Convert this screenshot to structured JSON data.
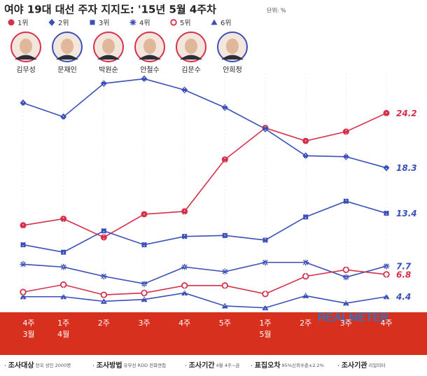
{
  "chart_data": {
    "type": "line",
    "title": "여야 19대 대선 주자 지지도: '15년 5월 4주차",
    "unit": "단위: %",
    "candidates": [
      "김무성",
      "문재인",
      "박원순",
      "안철수",
      "김문수",
      "안희정"
    ],
    "categories": [
      [
        "4주",
        "3월"
      ],
      [
        "1주",
        "4월"
      ],
      [
        "2주"
      ],
      [
        "3주"
      ],
      [
        "4주"
      ],
      [
        "5주"
      ],
      [
        "1주",
        "5월"
      ],
      [
        "2주"
      ],
      [
        "3주"
      ],
      [
        "4주"
      ]
    ],
    "ylim": [
      0,
      29
    ],
    "series": [
      {
        "name": "1위",
        "color": "#d6304a",
        "marker": "circle",
        "values": [
          12.1,
          12.8,
          10.8,
          13.3,
          13.6,
          19.2,
          22.6,
          21.2,
          22.2,
          24.2
        ]
      },
      {
        "name": "2위",
        "color": "#3a4fb8",
        "marker": "diamond",
        "values": [
          25.3,
          23.8,
          27.4,
          27.9,
          26.7,
          24.8,
          22.5,
          19.6,
          19.5,
          18.3
        ]
      },
      {
        "name": "3위",
        "color": "#3a4fb8",
        "marker": "square",
        "values": [
          10.0,
          9.2,
          11.5,
          10.0,
          10.9,
          11.0,
          10.5,
          13.0,
          14.7,
          13.4
        ]
      },
      {
        "name": "4위",
        "color": "#3a4fb8",
        "marker": "star",
        "values": [
          7.9,
          7.6,
          6.6,
          5.8,
          7.6,
          7.1,
          8.1,
          8.1,
          6.5,
          7.7
        ]
      },
      {
        "name": "5위",
        "color": "#d6304a",
        "marker": "hollow",
        "values": [
          4.9,
          5.7,
          4.6,
          4.8,
          5.6,
          5.6,
          4.7,
          6.6,
          7.3,
          6.8
        ]
      },
      {
        "name": "6위",
        "color": "#3a4fb8",
        "marker": "triangle",
        "values": [
          4.4,
          4.4,
          3.9,
          4.1,
          4.8,
          3.4,
          3.2,
          4.5,
          3.7,
          4.4
        ]
      }
    ],
    "watermark": "REALMETER",
    "footnotes": [
      {
        "label": "조사대상",
        "text": "전국 성인 2000명"
      },
      {
        "label": "조사방법",
        "text": "유무선 RDD 전화면접"
      },
      {
        "label": "조사기간",
        "text": "4월 4주~금"
      },
      {
        "label": "표집오차",
        "text": "95%신뢰수준±2.2%"
      },
      {
        "label": "조사기관",
        "text": "리얼미터"
      }
    ]
  }
}
